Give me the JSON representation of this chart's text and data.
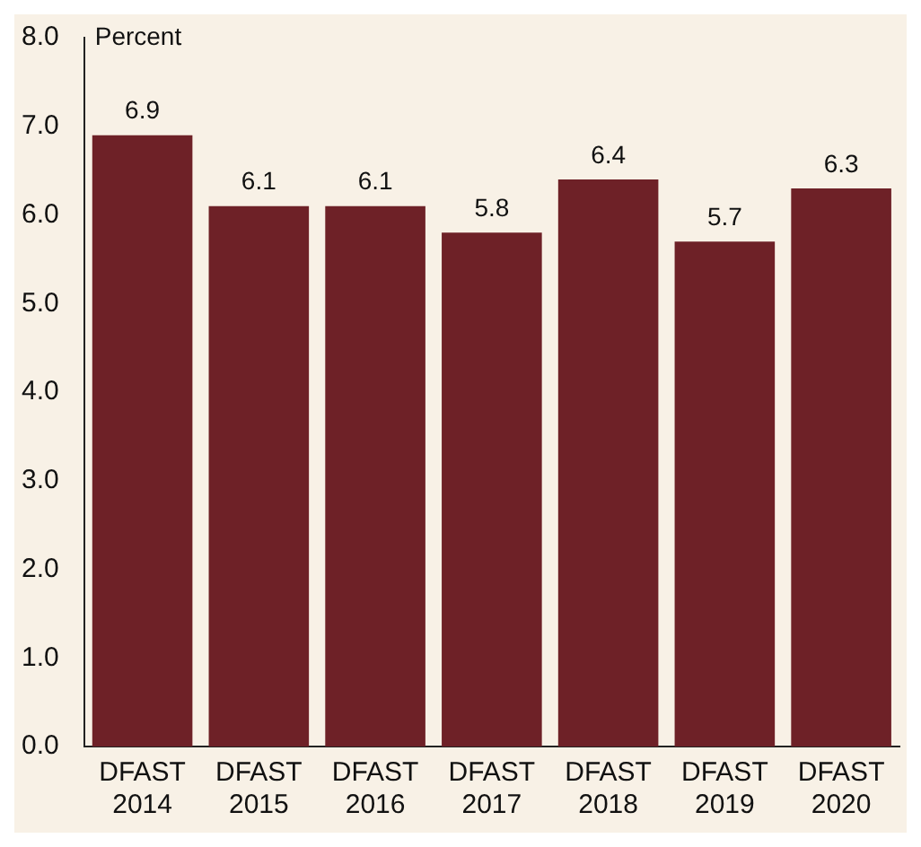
{
  "chart_data": {
    "type": "bar",
    "ylabel": "Percent",
    "categories": [
      "DFAST 2014",
      "DFAST 2015",
      "DFAST 2016",
      "DFAST 2017",
      "DFAST 2018",
      "DFAST 2019",
      "DFAST 2020"
    ],
    "values": [
      6.9,
      6.1,
      6.1,
      5.8,
      6.4,
      5.7,
      6.3
    ],
    "color": "#6e2127",
    "ylim": [
      0,
      8
    ],
    "yticks": [
      {
        "value": 0,
        "label": "0.0"
      },
      {
        "value": 1,
        "label": "1.0"
      },
      {
        "value": 2,
        "label": "2.0"
      },
      {
        "value": 3,
        "label": "3.0"
      },
      {
        "value": 4,
        "label": "4.0"
      },
      {
        "value": 5,
        "label": "5.0"
      },
      {
        "value": 6,
        "label": "6.0"
      },
      {
        "value": 7,
        "label": "7.0"
      },
      {
        "value": 8,
        "label": "8.0"
      }
    ],
    "grid": false,
    "legend": false,
    "data_labels": true
  }
}
